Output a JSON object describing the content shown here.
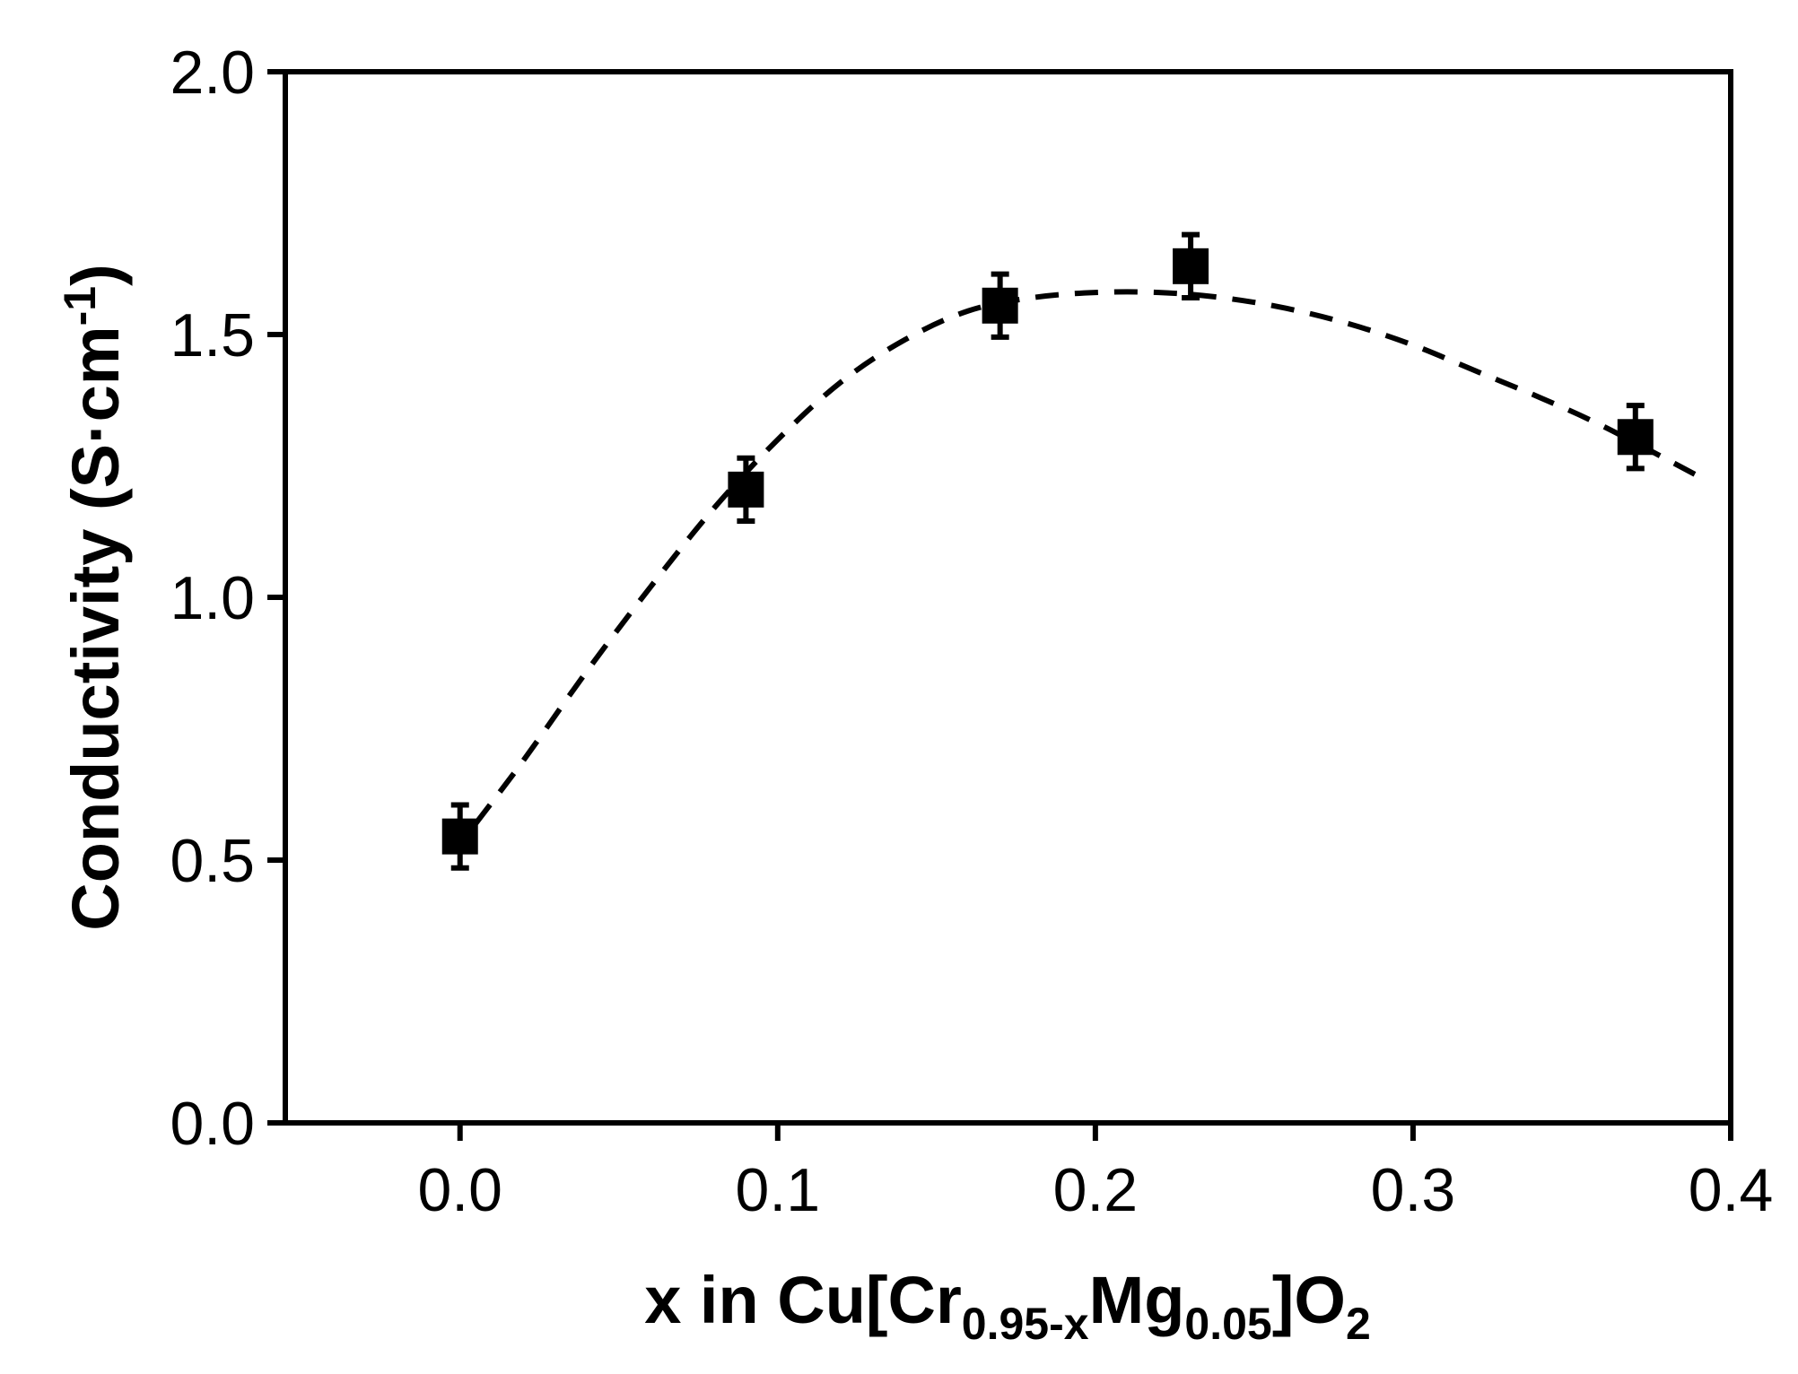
{
  "chart_data": {
    "type": "scatter",
    "xlabel": {
      "parts": [
        {
          "text": "x in Cu[Cr",
          "sub": false
        },
        {
          "text": "0.95-x",
          "sub": true
        },
        {
          "text": "Mg",
          "sub": false
        },
        {
          "text": "0.05",
          "sub": true
        },
        {
          "text": "]O",
          "sub": false
        },
        {
          "text": "2",
          "sub": true
        }
      ]
    },
    "ylabel": {
      "parts": [
        {
          "text": "Conductivity (S·cm",
          "sup": false
        },
        {
          "text": "-1",
          "sup": true
        },
        {
          "text": ")",
          "sup": false
        }
      ]
    },
    "xlim": [
      -0.055,
      0.4
    ],
    "ylim": [
      0.0,
      2.0
    ],
    "xticks": [
      0.0,
      0.1,
      0.2,
      0.3,
      0.4
    ],
    "xtick_labels": [
      "0.0",
      "0.1",
      "0.2",
      "0.3",
      "0.4"
    ],
    "yticks": [
      0.0,
      0.5,
      1.0,
      1.5,
      2.0
    ],
    "ytick_labels": [
      "0.0",
      "0.5",
      "1.0",
      "1.5",
      "2.0"
    ],
    "grid": false,
    "series": [
      {
        "marker": "square",
        "color": "#000000",
        "points": [
          {
            "x": 0.0,
            "y": 0.545,
            "err": 0.06
          },
          {
            "x": 0.09,
            "y": 1.205,
            "err": 0.06
          },
          {
            "x": 0.17,
            "y": 1.555,
            "err": 0.06
          },
          {
            "x": 0.23,
            "y": 1.63,
            "err": 0.06
          },
          {
            "x": 0.37,
            "y": 1.305,
            "err": 0.06
          }
        ]
      }
    ],
    "fit_curve": {
      "style": "dashed",
      "color": "#000000",
      "points": [
        [
          0.005,
          0.57
        ],
        [
          0.02,
          0.69
        ],
        [
          0.04,
          0.86
        ],
        [
          0.06,
          1.02
        ],
        [
          0.08,
          1.17
        ],
        [
          0.1,
          1.3
        ],
        [
          0.12,
          1.41
        ],
        [
          0.14,
          1.49
        ],
        [
          0.16,
          1.545
        ],
        [
          0.18,
          1.57
        ],
        [
          0.2,
          1.58
        ],
        [
          0.22,
          1.58
        ],
        [
          0.24,
          1.57
        ],
        [
          0.26,
          1.55
        ],
        [
          0.28,
          1.52
        ],
        [
          0.3,
          1.48
        ],
        [
          0.32,
          1.43
        ],
        [
          0.34,
          1.38
        ],
        [
          0.36,
          1.325
        ],
        [
          0.39,
          1.23
        ]
      ]
    }
  }
}
